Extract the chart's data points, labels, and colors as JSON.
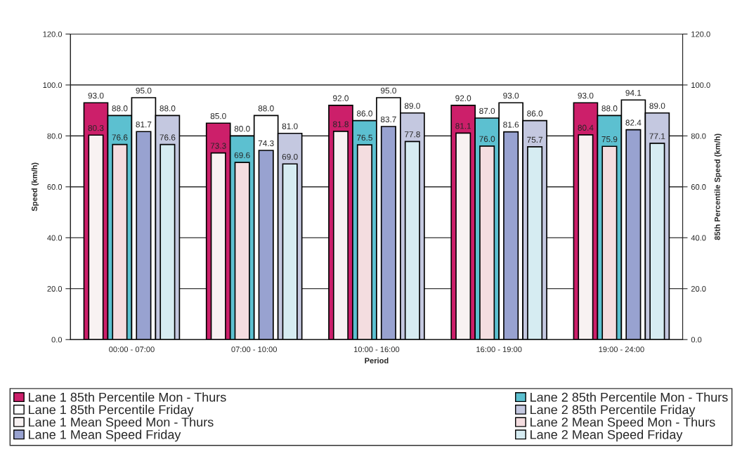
{
  "chart_data": {
    "type": "bar",
    "xlabel": "Period",
    "ylabel": "Speed (km/h)",
    "y2label": "85th Percentile Speed (km/h)",
    "categories": [
      "00:00 - 07:00",
      "07:00 - 10:00",
      "10:00 - 16:00",
      "16:00 - 19:00",
      "19:00 - 24:00"
    ],
    "series": [
      {
        "name": "Lane 1 85th Percentile Mon - Thurs",
        "color": "#cc1f6a",
        "values": [
          93.0,
          85.0,
          92.0,
          92.0,
          93.0
        ],
        "value_labels": [
          "93.0",
          "85.0",
          "92.0",
          "92.0",
          "93.0"
        ]
      },
      {
        "name": "Lane 2 85th Percentile Mon - Thurs",
        "color": "#5cc0d0",
        "values": [
          88.0,
          80.0,
          86.0,
          87.0,
          88.0
        ],
        "value_labels": [
          "88.0",
          "80.0",
          "86.0",
          "87.0",
          "88.0"
        ]
      },
      {
        "name": "Lane 1 85th Percentile Friday",
        "color": "#ffffff",
        "values": [
          95.0,
          88.0,
          95.0,
          93.0,
          94.1
        ],
        "value_labels": [
          "95.0",
          "88.0",
          "95.0",
          "93.0",
          "94.1"
        ]
      },
      {
        "name": "Lane 2 85th Percentile Friday",
        "color": "#c4c8e0",
        "values": [
          88.0,
          81.0,
          89.0,
          86.0,
          89.0
        ],
        "value_labels": [
          "88.0",
          "81.0",
          "89.0",
          "86.0",
          "89.0"
        ]
      },
      {
        "name": "Lane 1 Mean Speed Mon - Thurs",
        "color": "#f8f2f2",
        "values": [
          80.3,
          73.3,
          81.8,
          81.1,
          80.4
        ],
        "value_labels": [
          "80.3",
          "73.3",
          "81.8",
          "81.1",
          "80.4"
        ]
      },
      {
        "name": "Lane 2 Mean Speed Mon - Thurs",
        "color": "#f4dde0",
        "values": [
          76.6,
          69.6,
          76.5,
          76.0,
          75.9
        ],
        "value_labels": [
          "76.6",
          "69.6",
          "76.5",
          "76.0",
          "75.9"
        ]
      },
      {
        "name": "Lane 1 Mean Speed Friday",
        "color": "#98a2d0",
        "values": [
          81.7,
          74.3,
          83.7,
          81.6,
          82.4
        ],
        "value_labels": [
          "81.7",
          "74.3",
          "83.7",
          "81.6",
          "82.4"
        ]
      },
      {
        "name": "Lane 2 Mean Speed Friday",
        "color": "#d6ecf2",
        "values": [
          76.6,
          69.0,
          77.8,
          75.7,
          77.1
        ],
        "value_labels": [
          "76.6",
          "69.0",
          "77.8",
          "75.7",
          "77.1"
        ]
      }
    ],
    "ylim": [
      0,
      120
    ],
    "yticks": [
      {
        "value": 0,
        "label": "0.0"
      },
      {
        "value": 20,
        "label": "20.0"
      },
      {
        "value": 40,
        "label": "40.0"
      },
      {
        "value": 60,
        "label": "60.0"
      },
      {
        "value": 80,
        "label": "80.0"
      },
      {
        "value": 100,
        "label": "100.0"
      },
      {
        "value": 120,
        "label": "120.0"
      }
    ],
    "y2lim": [
      0,
      120
    ],
    "y2ticks": [
      {
        "value": 0,
        "label": "0.0"
      },
      {
        "value": 20,
        "label": "20.0"
      },
      {
        "value": 40,
        "label": "40.0"
      },
      {
        "value": 60,
        "label": "60.0"
      },
      {
        "value": 80,
        "label": "80.0"
      },
      {
        "value": 100,
        "label": "100.0"
      },
      {
        "value": 120,
        "label": "120.0"
      }
    ],
    "grid": "y",
    "legend": "bottom"
  }
}
